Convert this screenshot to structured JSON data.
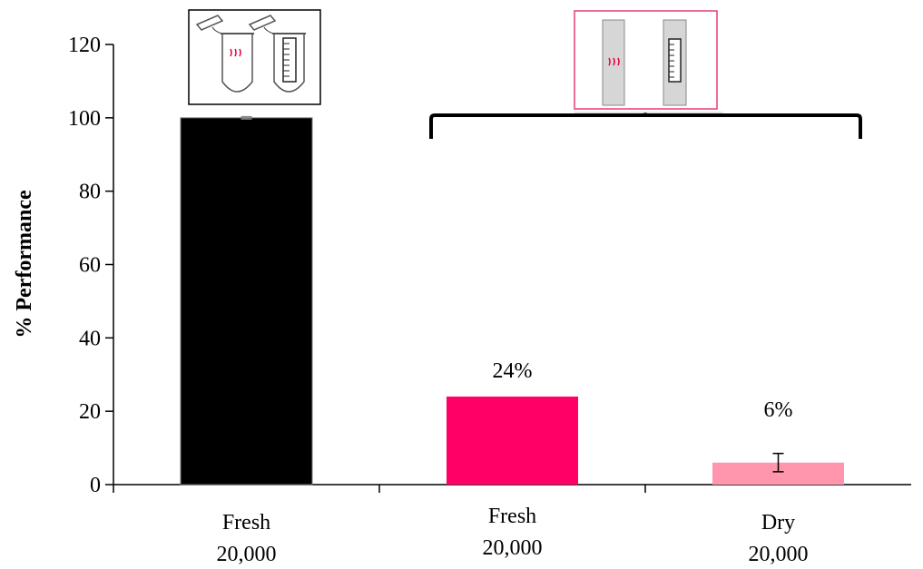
{
  "chart_data": {
    "type": "bar",
    "ylabel": "% Performance",
    "xlabel": "",
    "ylim": [
      0,
      120
    ],
    "yticks": [
      0,
      20,
      40,
      60,
      80,
      100,
      120
    ],
    "grid": false,
    "legend": "none",
    "categories": [
      {
        "line1": "Fresh",
        "line2": "20,000"
      },
      {
        "line1": "Fresh",
        "line2": "20,000"
      },
      {
        "line1": "Dry",
        "line2": "20,000"
      }
    ],
    "values": [
      100,
      24,
      6
    ],
    "error": [
      0.3,
      0,
      2.5
    ],
    "data_labels": [
      "",
      "24%",
      "6%"
    ],
    "colors": [
      "#000000",
      "#ff0066",
      "#ff96ae"
    ],
    "annotations": {
      "tube_box": "microcentrifuge tubes with red liquid and ruled strip (fresh reaction)",
      "paper_box": "paper strips with red liquid marking and ruled strip (paper-based reaction)",
      "bracket": "bracket spanning the two pink bars"
    }
  }
}
